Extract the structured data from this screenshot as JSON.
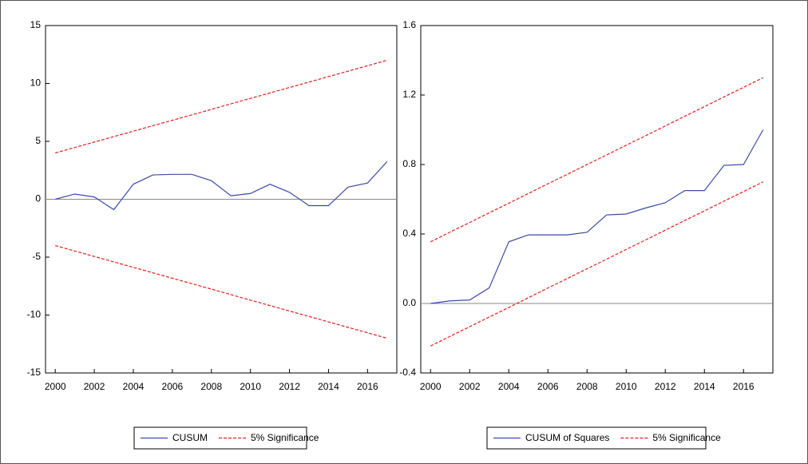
{
  "chart_data": [
    {
      "type": "line",
      "x": [
        2000,
        2001,
        2002,
        2003,
        2004,
        2005,
        2006,
        2007,
        2008,
        2009,
        2010,
        2011,
        2012,
        2013,
        2014,
        2015,
        2016,
        2017
      ],
      "xlim": [
        1999.5,
        2017.5
      ],
      "xticks": [
        2000,
        2002,
        2004,
        2006,
        2008,
        2010,
        2012,
        2014,
        2016
      ],
      "ylim": [
        -15,
        15
      ],
      "yticks": [
        -15,
        -10,
        -5,
        0,
        5,
        10,
        15
      ],
      "zero_line": true,
      "legend": "bottom",
      "series": [
        {
          "name": "CUSUM",
          "color": "#3b4ba6",
          "values": [
            0,
            0.45,
            0.2,
            -0.9,
            1.3,
            2.1,
            2.15,
            2.15,
            1.6,
            0.3,
            0.5,
            1.3,
            0.6,
            -0.55,
            -0.55,
            1.05,
            1.4,
            3.25
          ]
        },
        {
          "name": "5% Significance",
          "color": "#e0201b",
          "dashed": true,
          "upper": [
            4,
            4.47,
            4.94,
            5.41,
            5.88,
            6.35,
            6.82,
            7.29,
            7.76,
            8.24,
            8.71,
            9.18,
            9.65,
            10.12,
            10.59,
            11.06,
            11.53,
            12
          ],
          "lower": [
            -4,
            -4.47,
            -4.94,
            -5.41,
            -5.88,
            -6.35,
            -6.82,
            -7.29,
            -7.76,
            -8.24,
            -8.71,
            -9.18,
            -9.65,
            -10.12,
            -10.59,
            -11.06,
            -11.53,
            -12
          ]
        }
      ]
    },
    {
      "type": "line",
      "x": [
        2000,
        2001,
        2002,
        2003,
        2004,
        2005,
        2006,
        2007,
        2008,
        2009,
        2010,
        2011,
        2012,
        2013,
        2014,
        2015,
        2016,
        2017
      ],
      "xlim": [
        1999.5,
        2017.5
      ],
      "xticks": [
        2000,
        2002,
        2004,
        2006,
        2008,
        2010,
        2012,
        2014,
        2016
      ],
      "ylim": [
        -0.4,
        1.6
      ],
      "yticks": [
        -0.4,
        {
          "value": 0,
          "label": "0.0"
        },
        0.4,
        0.8,
        1.2,
        1.6
      ],
      "zero_line": true,
      "legend": "bottom",
      "series": [
        {
          "name": "CUSUM of Squares",
          "color": "#3b4ba6",
          "values": [
            0,
            0.015,
            0.02,
            0.09,
            0.355,
            0.395,
            0.395,
            0.395,
            0.41,
            0.51,
            0.515,
            0.55,
            0.58,
            0.65,
            0.65,
            0.795,
            0.8,
            1.0
          ]
        },
        {
          "name": "5% Significance",
          "color": "#e0201b",
          "dashed": true,
          "upper": [
            0.355,
            0.411,
            0.466,
            0.522,
            0.577,
            0.633,
            0.689,
            0.744,
            0.8,
            0.855,
            0.911,
            0.966,
            1.022,
            1.078,
            1.133,
            1.189,
            1.244,
            1.3
          ],
          "lower": [
            -0.245,
            -0.189,
            -0.134,
            -0.078,
            -0.023,
            0.033,
            0.089,
            0.144,
            0.2,
            0.255,
            0.311,
            0.366,
            0.422,
            0.478,
            0.533,
            0.589,
            0.644,
            0.7
          ]
        }
      ]
    }
  ]
}
